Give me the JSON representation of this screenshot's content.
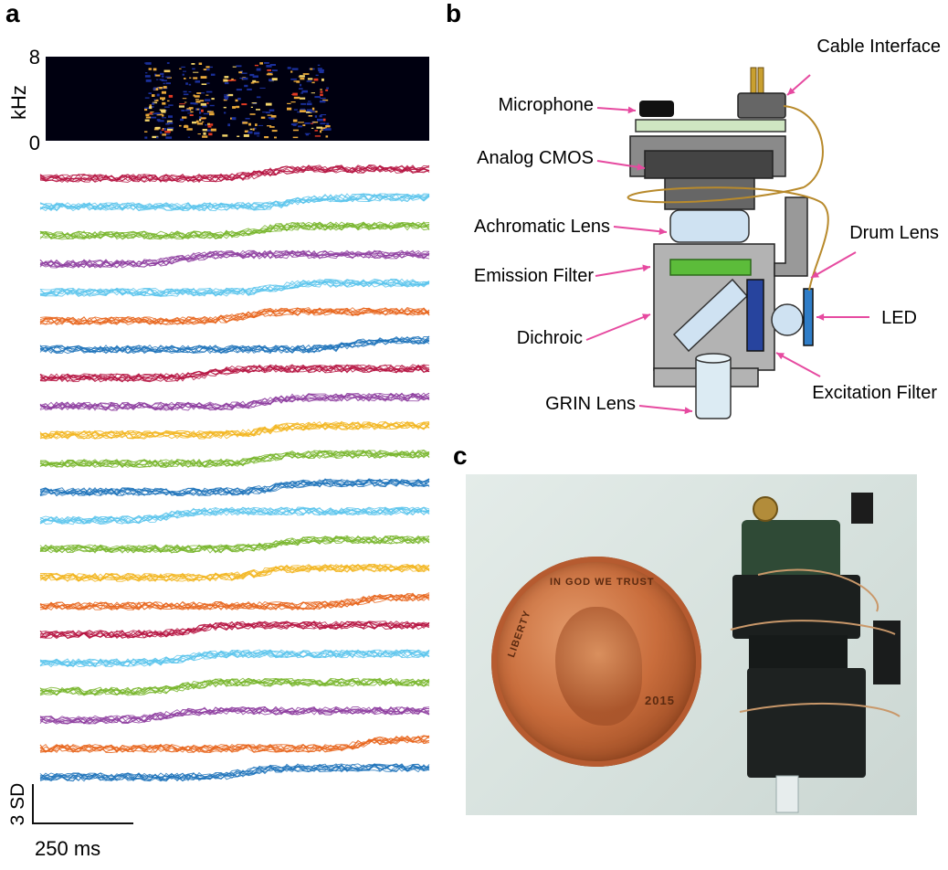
{
  "panels": {
    "a": "a",
    "b": "b",
    "c": "c"
  },
  "spectrogram": {
    "unit": "kHz",
    "top_tick": "8",
    "bottom_tick": "0"
  },
  "scalebar": {
    "vertical": "3 SD",
    "horizontal": "250 ms"
  },
  "diagram_labels": {
    "cable_interface": "Cable Interface",
    "microphone": "Microphone",
    "analog_cmos": "Analog CMOS",
    "achromatic_lens": "Achromatic Lens",
    "drum_lens": "Drum Lens",
    "emission_filter": "Emission Filter",
    "dichroic": "Dichroic",
    "led": "LED",
    "excitation_filter": "Excitation Filter",
    "grin_lens": "GRIN Lens"
  },
  "photo": {
    "coin_top": "IN GOD WE TRUST",
    "coin_left": "LIBERTY",
    "coin_year": "2015"
  },
  "trace_colors": [
    "#b5123f",
    "#5bc4ec",
    "#77b52a",
    "#8e3ea0",
    "#5bc4ec",
    "#e8651c",
    "#1c72ba",
    "#b5123f",
    "#8e3ea0",
    "#f2b51e",
    "#77b52a",
    "#1c72ba",
    "#5bc4ec",
    "#77b52a",
    "#f2b51e",
    "#e8651c",
    "#b5123f",
    "#5bc4ec",
    "#77b52a",
    "#8e3ea0",
    "#e8651c",
    "#1c72ba"
  ],
  "colors": {
    "arrow": "#e64aa0",
    "cable": "#b88a2c"
  }
}
